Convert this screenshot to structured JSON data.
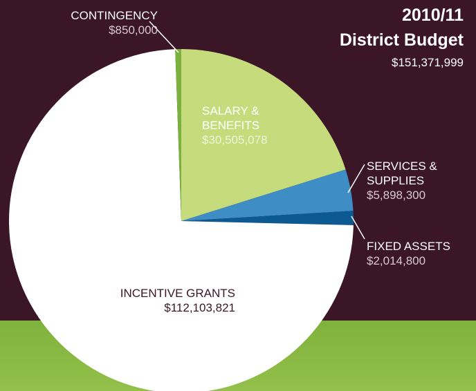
{
  "chart_data": {
    "type": "pie",
    "title": "2010/11",
    "subtitle": "District Budget",
    "total_label": "$151,371,999",
    "categories": [
      "SALARY & BENEFITS",
      "SERVICES & SUPPLIES",
      "FIXED ASSETS",
      "INCENTIVE GRANTS",
      "CONTINGENCY"
    ],
    "values": [
      30505078,
      5898300,
      2014800,
      112103821,
      850000
    ],
    "value_labels": [
      "$30,505,078",
      "$5,898,300",
      "$2,014,800",
      "$112,103,821",
      "$850,000"
    ],
    "colors": [
      "#c6dc7c",
      "#3f8dc5",
      "#0d5a92",
      "#ffffff",
      "#7bb13c"
    ]
  }
}
